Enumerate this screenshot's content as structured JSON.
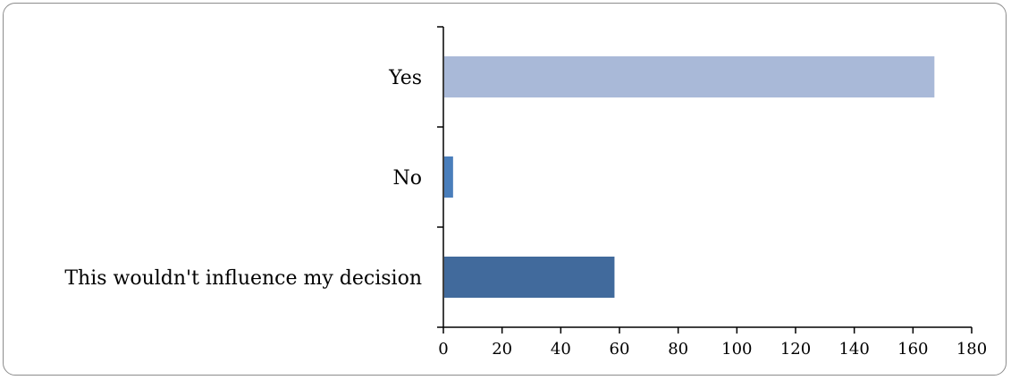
{
  "chart_data": {
    "type": "bar",
    "orientation": "horizontal",
    "categories": [
      "Yes",
      "No",
      "This wouldn't influence my decision"
    ],
    "values": [
      167,
      3,
      58
    ],
    "colors": [
      "#a9b9d8",
      "#4a7ebb",
      "#416a9c"
    ],
    "title": "",
    "xlabel": "",
    "ylabel": "",
    "xlim": [
      0,
      180
    ],
    "xticks": [
      0,
      20,
      40,
      60,
      80,
      100,
      120,
      140,
      160,
      180
    ],
    "grid": false,
    "legend": "none"
  }
}
